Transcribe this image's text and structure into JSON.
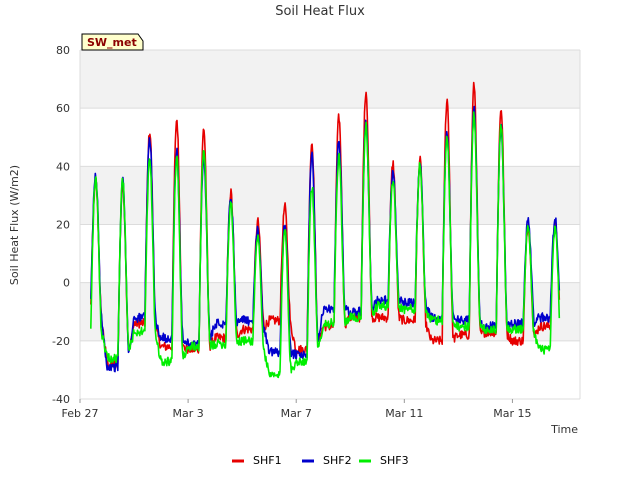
{
  "chart_data": {
    "type": "line",
    "title": "Soil Heat Flux",
    "xlabel": "Time",
    "ylabel": "Soil Heat Flux (W/m2)",
    "station_tag": "SW_met",
    "ylim": [
      -40,
      80
    ],
    "xlim": [
      0,
      18.5
    ],
    "grid": true,
    "legend_position": "bottom",
    "y_ticks": [
      -40,
      -20,
      0,
      20,
      40,
      60,
      80
    ],
    "x_ticks": [
      {
        "value": 0,
        "label": "Feb 27"
      },
      {
        "value": 4,
        "label": "Mar 3"
      },
      {
        "value": 8,
        "label": "Mar 7"
      },
      {
        "value": 12,
        "label": "Mar 11"
      },
      {
        "value": 16,
        "label": "Mar 15"
      }
    ],
    "colors": {
      "SHF1": "#e60000",
      "SHF2": "#0000cc",
      "SHF3": "#00ee00"
    },
    "start_day": 0.4,
    "end_day": 17.75,
    "series": [
      {
        "name": "SHF1",
        "peaks": [
          35,
          34,
          52,
          56,
          53,
          31,
          21,
          26,
          48,
          57,
          66,
          41,
          42,
          63,
          68,
          60,
          20
        ],
        "troughs": [
          -8,
          -28,
          -14,
          -22,
          -23,
          -19,
          -16,
          -13,
          -23,
          -15,
          -12,
          -12,
          -13,
          -20,
          -18,
          -17,
          -20,
          -15
        ]
      },
      {
        "name": "SHF2",
        "peaks": [
          37,
          35,
          50,
          45,
          43,
          29,
          18,
          20,
          44,
          49,
          55,
          38,
          41,
          52,
          60,
          54,
          22
        ],
        "troughs": [
          -7,
          -29,
          -12,
          -19,
          -21,
          -14,
          -13,
          -24,
          -25,
          -9,
          -10,
          -6,
          -7,
          -12,
          -13,
          -15,
          -14,
          -12
        ]
      },
      {
        "name": "SHF3",
        "peaks": [
          36,
          35,
          42,
          43,
          46,
          28,
          16,
          19,
          33,
          43,
          54,
          35,
          40,
          50,
          58,
          54,
          19
        ],
        "troughs": [
          -15,
          -26,
          -17,
          -27,
          -22,
          -21,
          -20,
          -32,
          -27,
          -14,
          -12,
          -8,
          -9,
          -13,
          -15,
          -16,
          -16,
          -23
        ]
      }
    ]
  }
}
